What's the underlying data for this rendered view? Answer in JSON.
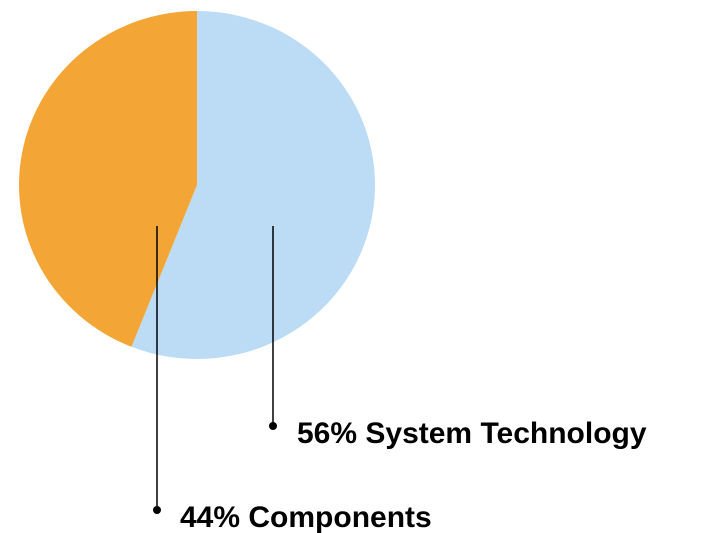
{
  "chart_data": {
    "type": "pie",
    "slices": [
      {
        "label": "System Technology",
        "value": 56,
        "percent_text": "56%",
        "color": "#bbdcf4"
      },
      {
        "label": "Components",
        "value": 44,
        "percent_text": "44%",
        "color": "#f3a636"
      }
    ],
    "labels": {
      "system_technology": "56% System Technology",
      "components": "44% Components"
    }
  }
}
